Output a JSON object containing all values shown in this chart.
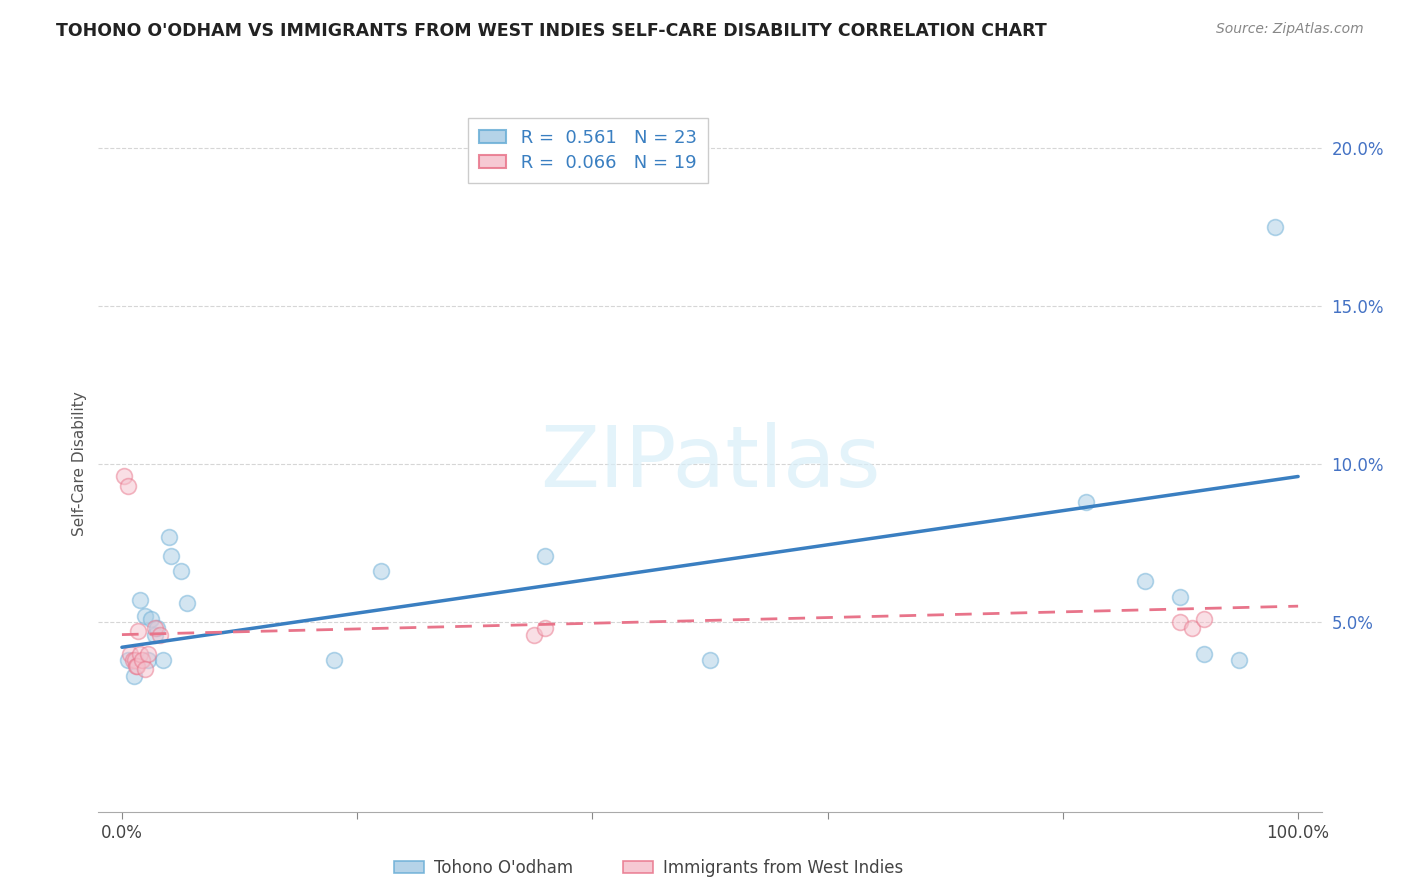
{
  "title": "TOHONO O'ODHAM VS IMMIGRANTS FROM WEST INDIES SELF-CARE DISABILITY CORRELATION CHART",
  "source": "Source: ZipAtlas.com",
  "ylabel": "Self-Care Disability",
  "x_min": 0.0,
  "x_max": 1.0,
  "y_min": 0.0,
  "y_max": 0.21,
  "x_ticks": [
    0.0,
    0.2,
    0.4,
    0.6,
    0.8,
    1.0
  ],
  "x_tick_labels": [
    "0.0%",
    "",
    "",
    "",
    "",
    "100.0%"
  ],
  "y_ticks": [
    0.05,
    0.1,
    0.15,
    0.2
  ],
  "y_tick_labels": [
    "5.0%",
    "10.0%",
    "15.0%",
    "20.0%"
  ],
  "blue_color": "#a8cce4",
  "blue_edge_color": "#6aaed6",
  "pink_color": "#f5c0cc",
  "pink_edge_color": "#e8748a",
  "blue_line_color": "#3a7fc1",
  "pink_line_color": "#e8748a",
  "legend_R_blue": "0.561",
  "legend_N_blue": "23",
  "legend_R_pink": "0.066",
  "legend_N_pink": "19",
  "legend_label_blue": "Tohono O'odham",
  "legend_label_pink": "Immigrants from West Indies",
  "watermark": "ZIPatlas",
  "blue_scatter_x": [
    0.005,
    0.01,
    0.015,
    0.02,
    0.022,
    0.025,
    0.028,
    0.03,
    0.035,
    0.04,
    0.042,
    0.05,
    0.055,
    0.18,
    0.22,
    0.36,
    0.5,
    0.82,
    0.87,
    0.9,
    0.92,
    0.95,
    0.98
  ],
  "blue_scatter_y": [
    0.038,
    0.033,
    0.057,
    0.052,
    0.038,
    0.051,
    0.046,
    0.048,
    0.038,
    0.077,
    0.071,
    0.066,
    0.056,
    0.038,
    0.066,
    0.071,
    0.038,
    0.088,
    0.063,
    0.058,
    0.04,
    0.038,
    0.175
  ],
  "pink_scatter_x": [
    0.002,
    0.005,
    0.007,
    0.009,
    0.011,
    0.012,
    0.013,
    0.014,
    0.015,
    0.017,
    0.022,
    0.028,
    0.032,
    0.35,
    0.36,
    0.02,
    0.9,
    0.91,
    0.92
  ],
  "pink_scatter_y": [
    0.096,
    0.093,
    0.04,
    0.038,
    0.038,
    0.036,
    0.036,
    0.047,
    0.04,
    0.038,
    0.04,
    0.048,
    0.046,
    0.046,
    0.048,
    0.035,
    0.05,
    0.048,
    0.051
  ],
  "blue_line_x_start": 0.0,
  "blue_line_x_end": 1.0,
  "blue_line_y_start": 0.042,
  "blue_line_y_end": 0.096,
  "pink_line_x_start": 0.0,
  "pink_line_x_end": 1.0,
  "pink_line_y_start": 0.046,
  "pink_line_y_end": 0.055,
  "background_color": "#ffffff",
  "grid_color": "#cccccc",
  "scatter_size": 130,
  "scatter_alpha": 0.5,
  "scatter_linewidth": 1.2
}
